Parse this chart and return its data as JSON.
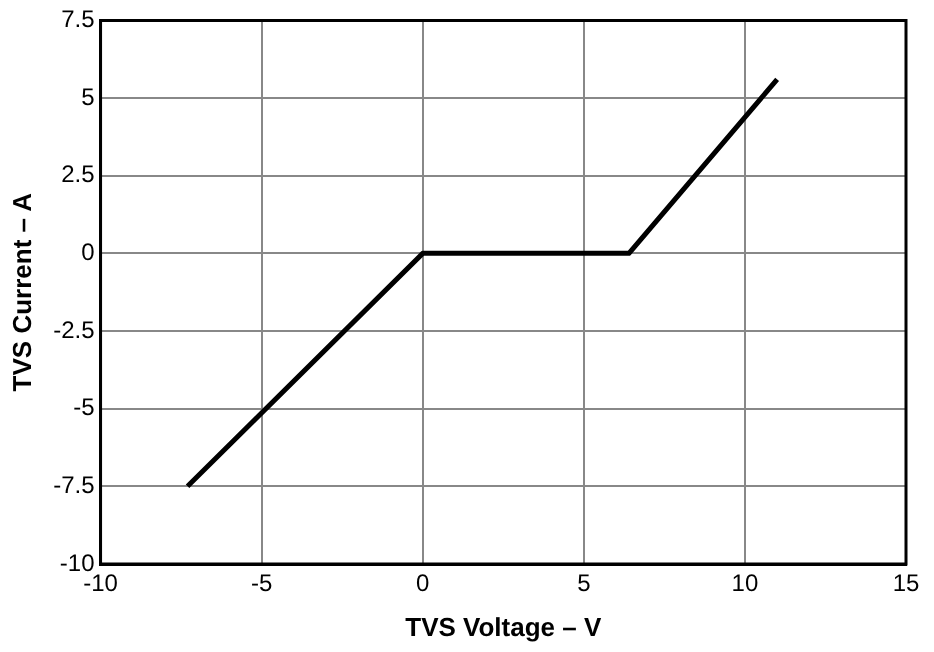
{
  "chart_data": {
    "type": "line",
    "xlabel": "TVS Voltage – V",
    "ylabel": "TVS Current – A",
    "series": [
      {
        "color": "#000000",
        "x": [
          -7.3,
          0,
          6.4,
          11
        ],
        "values": [
          -7.5,
          0,
          0,
          5.6
        ]
      }
    ],
    "xlim": [
      -10,
      15
    ],
    "xticks": [
      -10,
      -5,
      0,
      5,
      10,
      15
    ],
    "ylim": [
      -10,
      7.5
    ],
    "yticks": [
      -10,
      -7.5,
      -5,
      -2.5,
      0,
      2.5,
      5,
      7.5
    ],
    "grid": true,
    "legend": false,
    "marker": "none",
    "line_style": "solid"
  }
}
